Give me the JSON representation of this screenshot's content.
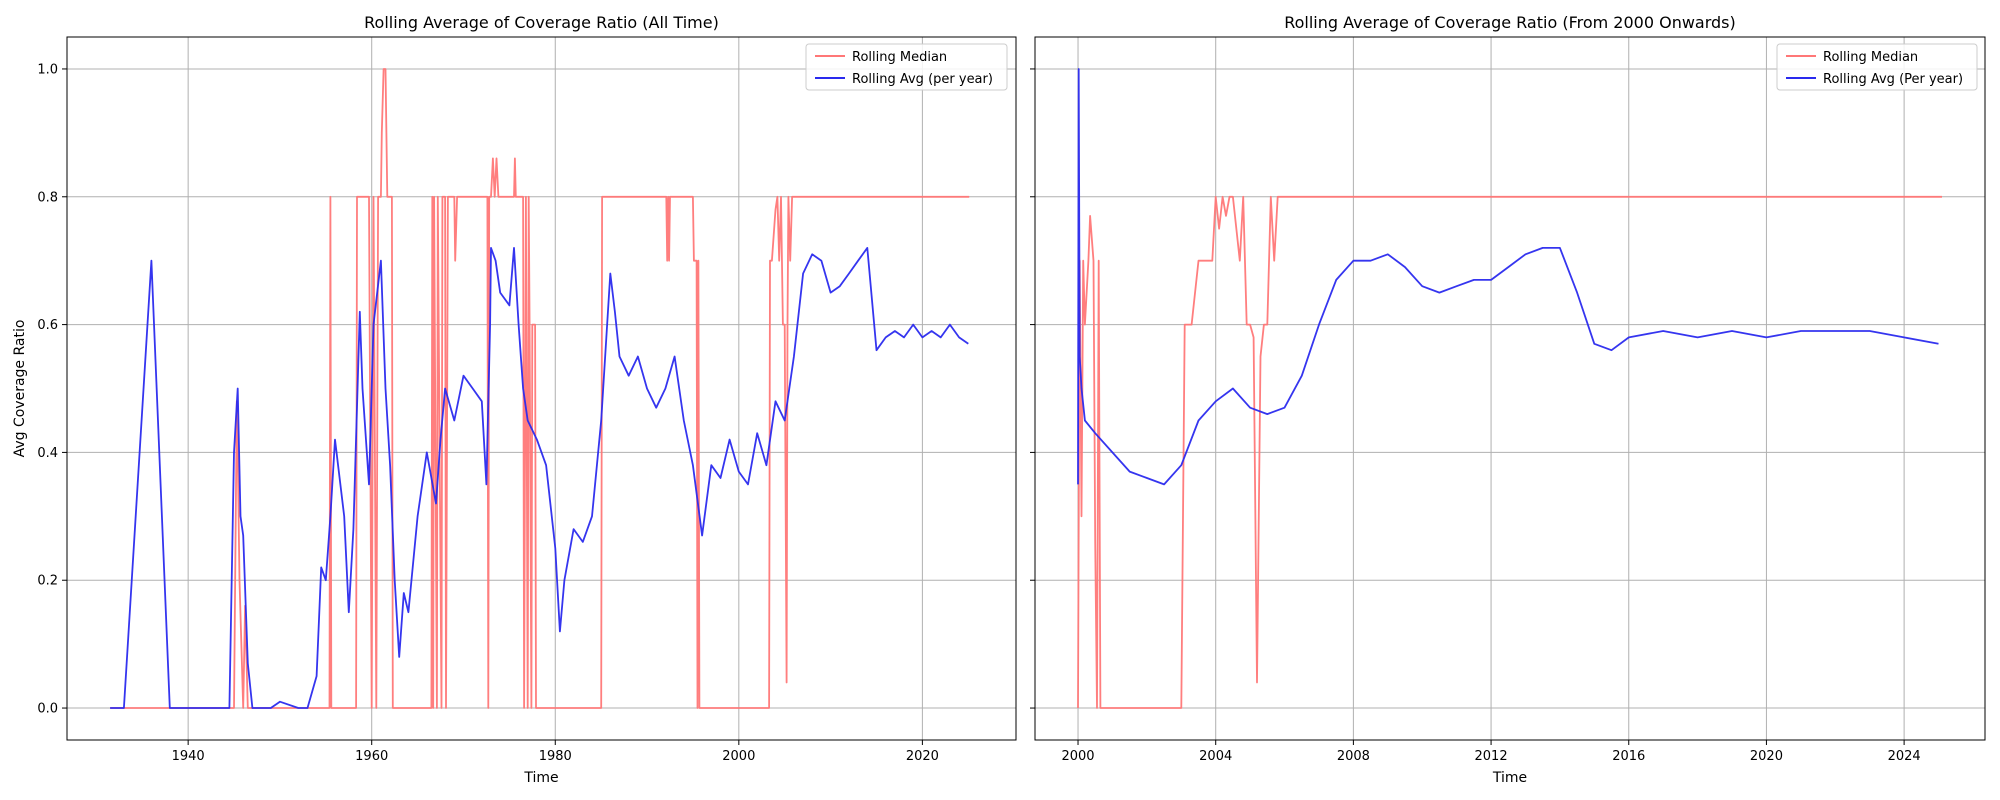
{
  "chart_data": [
    {
      "type": "line",
      "title": "Rolling Average of Coverage Ratio (All Time)",
      "xlabel": "Time",
      "ylabel": "Avg Coverage Ratio",
      "xlim": [
        1926.8,
        2030.2
      ],
      "ylim": [
        -0.05,
        1.05
      ],
      "xticks": [
        1940,
        1960,
        1980,
        2000,
        2020
      ],
      "xtick_labels": [
        "1940",
        "1960",
        "1980",
        "2000",
        "2020"
      ],
      "yticks": [
        0.0,
        0.2,
        0.4,
        0.6,
        0.8,
        1.0
      ],
      "ytick_labels": [
        "0.0",
        "0.2",
        "0.4",
        "0.6",
        "0.8",
        "1.0"
      ],
      "grid": true,
      "legend_position": "top-right",
      "series": [
        {
          "name": "Rolling Median",
          "color": "#ff7777",
          "x": [
            1931.5,
            1935.9,
            1936.1,
            1945.0,
            1945.3,
            1945.4,
            1945.6,
            1946.0,
            1946.2,
            1946.5,
            1955.4,
            1955.5,
            1955.6,
            1956.2,
            1956.3,
            1958.3,
            1958.4,
            1959.7,
            1960.0,
            1960.2,
            1960.5,
            1960.7,
            1961.0,
            1961.1,
            1961.3,
            1961.5,
            1961.6,
            1961.7,
            1962.2,
            1962.3,
            1966.5,
            1966.6,
            1966.7,
            1966.8,
            1967.1,
            1967.2,
            1967.6,
            1967.7,
            1968.0,
            1968.1,
            1968.3,
            1969.0,
            1969.1,
            1969.3,
            1969.4,
            1972.6,
            1972.7,
            1972.8,
            1973.0,
            1973.2,
            1973.4,
            1973.6,
            1973.8,
            1975.5,
            1975.6,
            1975.7,
            1976.5,
            1976.6,
            1976.8,
            1977.0,
            1977.1,
            1977.2,
            1977.4,
            1977.5,
            1977.8,
            1977.9,
            1985.0,
            1985.1,
            1992.1,
            1992.2,
            1992.3,
            1992.4,
            1992.5,
            1992.6,
            1995.0,
            1995.1,
            1995.4,
            1995.5,
            1995.6,
            1995.7,
            1995.8,
            2003.3,
            2003.4,
            2003.6,
            2004.0,
            2004.2,
            2004.4,
            2004.6,
            2004.8,
            2005.0,
            2005.2,
            2005.3,
            2005.4,
            2005.6,
            2005.8,
            2006.0,
            2025.1
          ],
          "values": [
            0.0,
            0.0,
            0.0,
            0.0,
            0.48,
            0.4,
            0.2,
            0.0,
            0.16,
            0.0,
            0.0,
            0.8,
            0.0,
            0.0,
            0.0,
            0.0,
            0.8,
            0.8,
            0.0,
            0.8,
            0.0,
            0.8,
            0.8,
            0.9,
            1.0,
            1.0,
            0.9,
            0.8,
            0.8,
            0.0,
            0.0,
            0.8,
            0.0,
            0.8,
            0.0,
            0.8,
            0.0,
            0.8,
            0.8,
            0.0,
            0.8,
            0.8,
            0.7,
            0.8,
            0.8,
            0.8,
            0.0,
            0.8,
            0.8,
            0.86,
            0.8,
            0.86,
            0.8,
            0.8,
            0.86,
            0.8,
            0.8,
            0.0,
            0.8,
            0.0,
            0.8,
            0.6,
            0.0,
            0.6,
            0.6,
            0.0,
            0.0,
            0.8,
            0.8,
            0.7,
            0.8,
            0.7,
            0.8,
            0.8,
            0.8,
            0.7,
            0.7,
            0.0,
            0.7,
            0.0,
            0.0,
            0.0,
            0.7,
            0.7,
            0.78,
            0.8,
            0.7,
            0.8,
            0.6,
            0.6,
            0.04,
            0.6,
            0.8,
            0.7,
            0.8,
            0.8,
            0.8
          ]
        },
        {
          "name": "Rolling Avg (per year)",
          "color": "#2a2aee",
          "x": [
            1931.5,
            1933.0,
            1936.0,
            1937.0,
            1938.0,
            1944.5,
            1945.0,
            1945.4,
            1945.7,
            1946.0,
            1946.5,
            1947.0,
            1949.0,
            1950.0,
            1952.0,
            1953.0,
            1954.0,
            1954.5,
            1955.0,
            1955.5,
            1956.0,
            1957.0,
            1957.5,
            1958.0,
            1958.7,
            1959.0,
            1959.7,
            1960.2,
            1961.0,
            1961.5,
            1962.0,
            1962.5,
            1963.0,
            1963.5,
            1964.0,
            1965.0,
            1966.0,
            1967.0,
            1967.5,
            1968.0,
            1969.0,
            1970.0,
            1971.0,
            1972.0,
            1972.5,
            1972.9,
            1973.0,
            1973.5,
            1974.0,
            1975.0,
            1975.5,
            1976.0,
            1976.5,
            1977.0,
            1978.0,
            1979.0,
            1980.0,
            1980.5,
            1981.0,
            1982.0,
            1983.0,
            1984.0,
            1985.0,
            1986.0,
            1986.5,
            1987.0,
            1988.0,
            1989.0,
            1990.0,
            1991.0,
            1992.0,
            1993.0,
            1994.0,
            1995.0,
            1996.0,
            1997.0,
            1998.0,
            1999.0,
            2000.0,
            2001.0,
            2002.0,
            2003.0,
            2004.0,
            2005.0,
            2005.5,
            2006.0,
            2007.0,
            2008.0,
            2009.0,
            2010.0,
            2011.0,
            2012.0,
            2013.0,
            2014.0,
            2015.0,
            2016.0,
            2017.0,
            2018.0,
            2019.0,
            2020.0,
            2021.0,
            2022.0,
            2023.0,
            2024.0,
            2025.0
          ],
          "values": [
            0.0,
            0.0,
            0.7,
            0.35,
            0.0,
            0.0,
            0.4,
            0.5,
            0.3,
            0.27,
            0.07,
            0.0,
            0.0,
            0.01,
            0.0,
            0.0,
            0.05,
            0.22,
            0.2,
            0.3,
            0.42,
            0.3,
            0.15,
            0.28,
            0.62,
            0.5,
            0.35,
            0.6,
            0.7,
            0.5,
            0.38,
            0.2,
            0.08,
            0.18,
            0.15,
            0.3,
            0.4,
            0.32,
            0.42,
            0.5,
            0.45,
            0.52,
            0.5,
            0.48,
            0.35,
            0.6,
            0.72,
            0.7,
            0.65,
            0.63,
            0.72,
            0.6,
            0.5,
            0.45,
            0.42,
            0.38,
            0.25,
            0.12,
            0.2,
            0.28,
            0.26,
            0.3,
            0.45,
            0.68,
            0.62,
            0.55,
            0.52,
            0.55,
            0.5,
            0.47,
            0.5,
            0.55,
            0.45,
            0.38,
            0.27,
            0.38,
            0.36,
            0.42,
            0.37,
            0.35,
            0.43,
            0.38,
            0.48,
            0.45,
            0.5,
            0.55,
            0.68,
            0.71,
            0.7,
            0.65,
            0.66,
            0.68,
            0.7,
            0.72,
            0.56,
            0.58,
            0.59,
            0.58,
            0.6,
            0.58,
            0.59,
            0.58,
            0.6,
            0.58,
            0.57
          ]
        }
      ]
    },
    {
      "type": "line",
      "title": "Rolling Average of Coverage Ratio (From 2000 Onwards)",
      "xlabel": "Time",
      "ylabel": "",
      "xlim": [
        1998.75,
        2026.35
      ],
      "ylim": [
        -0.05,
        1.05
      ],
      "xticks": [
        2000,
        2004,
        2008,
        2012,
        2016,
        2020,
        2024
      ],
      "xtick_labels": [
        "2000",
        "2004",
        "2008",
        "2012",
        "2016",
        "2020",
        "2024"
      ],
      "yticks": [
        0.0,
        0.2,
        0.4,
        0.6,
        0.8,
        1.0
      ],
      "ytick_labels": [
        "",
        "",
        "",
        "",
        "",
        ""
      ],
      "grid": true,
      "legend_position": "top-right",
      "series": [
        {
          "name": "Rolling Median",
          "color": "#ff7777",
          "x": [
            2000.0,
            2000.05,
            2000.1,
            2000.15,
            2000.2,
            2000.3,
            2000.35,
            2000.45,
            2000.5,
            2000.55,
            2000.6,
            2000.65,
            2001.0,
            2002.0,
            2003.0,
            2003.1,
            2003.3,
            2003.5,
            2003.7,
            2003.9,
            2004.0,
            2004.1,
            2004.2,
            2004.3,
            2004.4,
            2004.5,
            2004.7,
            2004.8,
            2004.9,
            2005.0,
            2005.1,
            2005.2,
            2005.3,
            2005.4,
            2005.5,
            2005.6,
            2005.7,
            2005.8,
            2005.9,
            2006.0,
            2025.1
          ],
          "values": [
            0.0,
            0.7,
            0.3,
            0.7,
            0.6,
            0.7,
            0.77,
            0.7,
            0.26,
            0.0,
            0.7,
            0.0,
            0.0,
            0.0,
            0.0,
            0.6,
            0.6,
            0.7,
            0.7,
            0.7,
            0.8,
            0.75,
            0.8,
            0.77,
            0.8,
            0.8,
            0.7,
            0.8,
            0.6,
            0.6,
            0.58,
            0.04,
            0.55,
            0.6,
            0.6,
            0.8,
            0.7,
            0.8,
            0.8,
            0.8,
            0.8
          ]
        },
        {
          "name": "Rolling Avg (Per year)",
          "color": "#2a2aee",
          "x": [
            2000.0,
            2000.02,
            2000.05,
            2000.1,
            2000.2,
            2000.5,
            2001.0,
            2001.5,
            2002.0,
            2002.5,
            2003.0,
            2003.5,
            2004.0,
            2004.5,
            2005.0,
            2005.5,
            2006.0,
            2006.5,
            2007.0,
            2007.5,
            2008.0,
            2008.5,
            2009.0,
            2009.5,
            2010.0,
            2010.5,
            2011.0,
            2011.5,
            2012.0,
            2012.5,
            2013.0,
            2013.5,
            2014.0,
            2014.5,
            2015.0,
            2015.5,
            2016.0,
            2017.0,
            2018.0,
            2019.0,
            2020.0,
            2021.0,
            2022.0,
            2023.0,
            2024.0,
            2025.0
          ],
          "values": [
            0.35,
            1.0,
            0.55,
            0.5,
            0.45,
            0.43,
            0.4,
            0.37,
            0.36,
            0.35,
            0.38,
            0.45,
            0.48,
            0.5,
            0.47,
            0.46,
            0.47,
            0.52,
            0.6,
            0.67,
            0.7,
            0.7,
            0.71,
            0.69,
            0.66,
            0.65,
            0.66,
            0.67,
            0.67,
            0.69,
            0.71,
            0.72,
            0.72,
            0.65,
            0.57,
            0.56,
            0.58,
            0.59,
            0.58,
            0.59,
            0.58,
            0.59,
            0.59,
            0.59,
            0.58,
            0.57
          ]
        }
      ]
    }
  ]
}
